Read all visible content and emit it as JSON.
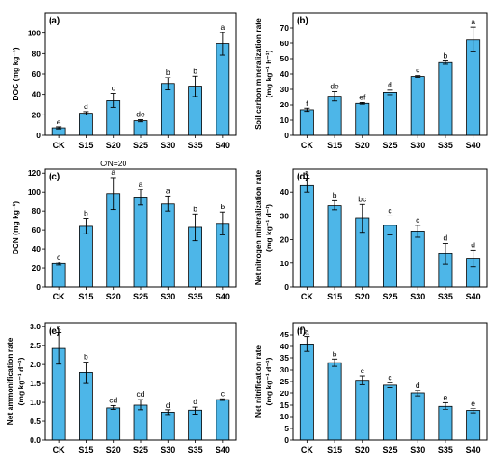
{
  "bar_color": "#4db6e8",
  "chart_data": [
    {
      "type": "bar",
      "panel_label": "(a)",
      "categories": [
        "CK",
        "S15",
        "S20",
        "S25",
        "S30",
        "S35",
        "S40"
      ],
      "values": [
        7,
        21.5,
        34,
        14.5,
        50.5,
        48,
        89.5
      ],
      "errors": [
        1,
        1.5,
        7,
        1,
        6,
        10,
        11
      ],
      "letters": [
        "e",
        "d",
        "c",
        "de",
        "b",
        "b",
        "a"
      ],
      "ylabel_lines": [
        "DOC (mg kg⁻¹)"
      ],
      "ylim": [
        0,
        120
      ],
      "yticks": [
        "0",
        "20",
        "40",
        "60",
        "80",
        "100"
      ],
      "ytick_values": [
        0,
        20,
        40,
        60,
        80,
        100
      ],
      "annotation": ""
    },
    {
      "type": "bar",
      "panel_label": "(b)",
      "categories": [
        "CK",
        "S15",
        "S20",
        "S25",
        "S30",
        "S35",
        "S40"
      ],
      "values": [
        16.5,
        25.5,
        21,
        28,
        38.5,
        47.5,
        62.5
      ],
      "errors": [
        1,
        3,
        0.5,
        1.5,
        0.5,
        1,
        8
      ],
      "letters": [
        "f",
        "de",
        "ef",
        "d",
        "c",
        "b",
        "a"
      ],
      "ylabel_lines": [
        "Soil carbon mineralization rate",
        "(mg kg⁻¹ h⁻¹)"
      ],
      "ylim": [
        0,
        80
      ],
      "yticks": [
        "0",
        "10",
        "20",
        "30",
        "40",
        "50",
        "60",
        "70"
      ],
      "ytick_values": [
        0,
        10,
        20,
        30,
        40,
        50,
        60,
        70
      ],
      "annotation": ""
    },
    {
      "type": "bar",
      "panel_label": "(c)",
      "categories": [
        "CK",
        "S15",
        "S20",
        "S25",
        "S30",
        "S35",
        "S40"
      ],
      "values": [
        24.5,
        64,
        98.5,
        95,
        88,
        63,
        67
      ],
      "errors": [
        1.5,
        8,
        17,
        8,
        8,
        14,
        12
      ],
      "letters": [
        "c",
        "b",
        "a",
        "a",
        "a",
        "b",
        "b"
      ],
      "ylabel_lines": [
        "DON (mg kg⁻¹)"
      ],
      "ylim": [
        0,
        125
      ],
      "yticks": [
        "0",
        "20",
        "40",
        "60",
        "80",
        "100",
        "120"
      ],
      "ytick_values": [
        0,
        20,
        40,
        60,
        80,
        100,
        120
      ],
      "annotation": "C/N=20"
    },
    {
      "type": "bar",
      "panel_label": "(d)",
      "categories": [
        "CK",
        "S15",
        "S20",
        "S25",
        "S30",
        "S35",
        "S40"
      ],
      "values": [
        43,
        34.5,
        29,
        26,
        23.5,
        14,
        12
      ],
      "errors": [
        3,
        2,
        6,
        4,
        2.5,
        4.5,
        3.5
      ],
      "letters": [
        "a",
        "b",
        "bc",
        "c",
        "c",
        "d",
        "d"
      ],
      "ylabel_lines": [
        "Net nitrogen mineralization rate",
        "(mg kg⁻¹ d⁻¹)"
      ],
      "ylim": [
        0,
        50
      ],
      "yticks": [
        "0",
        "10",
        "20",
        "30",
        "40"
      ],
      "ytick_values": [
        0,
        10,
        20,
        30,
        40
      ],
      "annotation": ""
    },
    {
      "type": "bar",
      "panel_label": "(e)",
      "categories": [
        "CK",
        "S15",
        "S20",
        "S25",
        "S30",
        "S35",
        "S40"
      ],
      "values": [
        2.43,
        1.78,
        0.86,
        0.93,
        0.73,
        0.78,
        1.07
      ],
      "errors": [
        0.42,
        0.28,
        0.06,
        0.14,
        0.06,
        0.1,
        0.02
      ],
      "letters": [
        "a",
        "b",
        "cd",
        "cd",
        "d",
        "d",
        "c"
      ],
      "ylabel_lines": [
        "Net ammonification rate",
        "(mg kg⁻¹ d⁻¹)"
      ],
      "ylim": [
        0,
        3.1
      ],
      "yticks": [
        "0.0",
        "0.5",
        "1.0",
        "1.5",
        "2.0",
        "2.5",
        "3.0"
      ],
      "ytick_values": [
        0,
        0.5,
        1.0,
        1.5,
        2.0,
        2.5,
        3.0
      ],
      "annotation": ""
    },
    {
      "type": "bar",
      "panel_label": "(f)",
      "categories": [
        "CK",
        "S15",
        "S20",
        "S25",
        "S30",
        "S35",
        "S40"
      ],
      "values": [
        41,
        33,
        25.5,
        23.5,
        20,
        14.5,
        12.5
      ],
      "errors": [
        3,
        1.5,
        1.8,
        1,
        1.2,
        1.5,
        1
      ],
      "letters": [
        "a",
        "b",
        "c",
        "c",
        "d",
        "e",
        "e"
      ],
      "ylabel_lines": [
        "Net nitrification rate",
        "(mg kg⁻¹ d⁻¹)"
      ],
      "ylim": [
        0,
        50
      ],
      "yticks": [
        "0",
        "5",
        "10",
        "15",
        "20",
        "25",
        "30",
        "35",
        "40",
        "45"
      ],
      "ytick_values": [
        0,
        5,
        10,
        15,
        20,
        25,
        30,
        35,
        40,
        45
      ],
      "annotation": ""
    }
  ]
}
